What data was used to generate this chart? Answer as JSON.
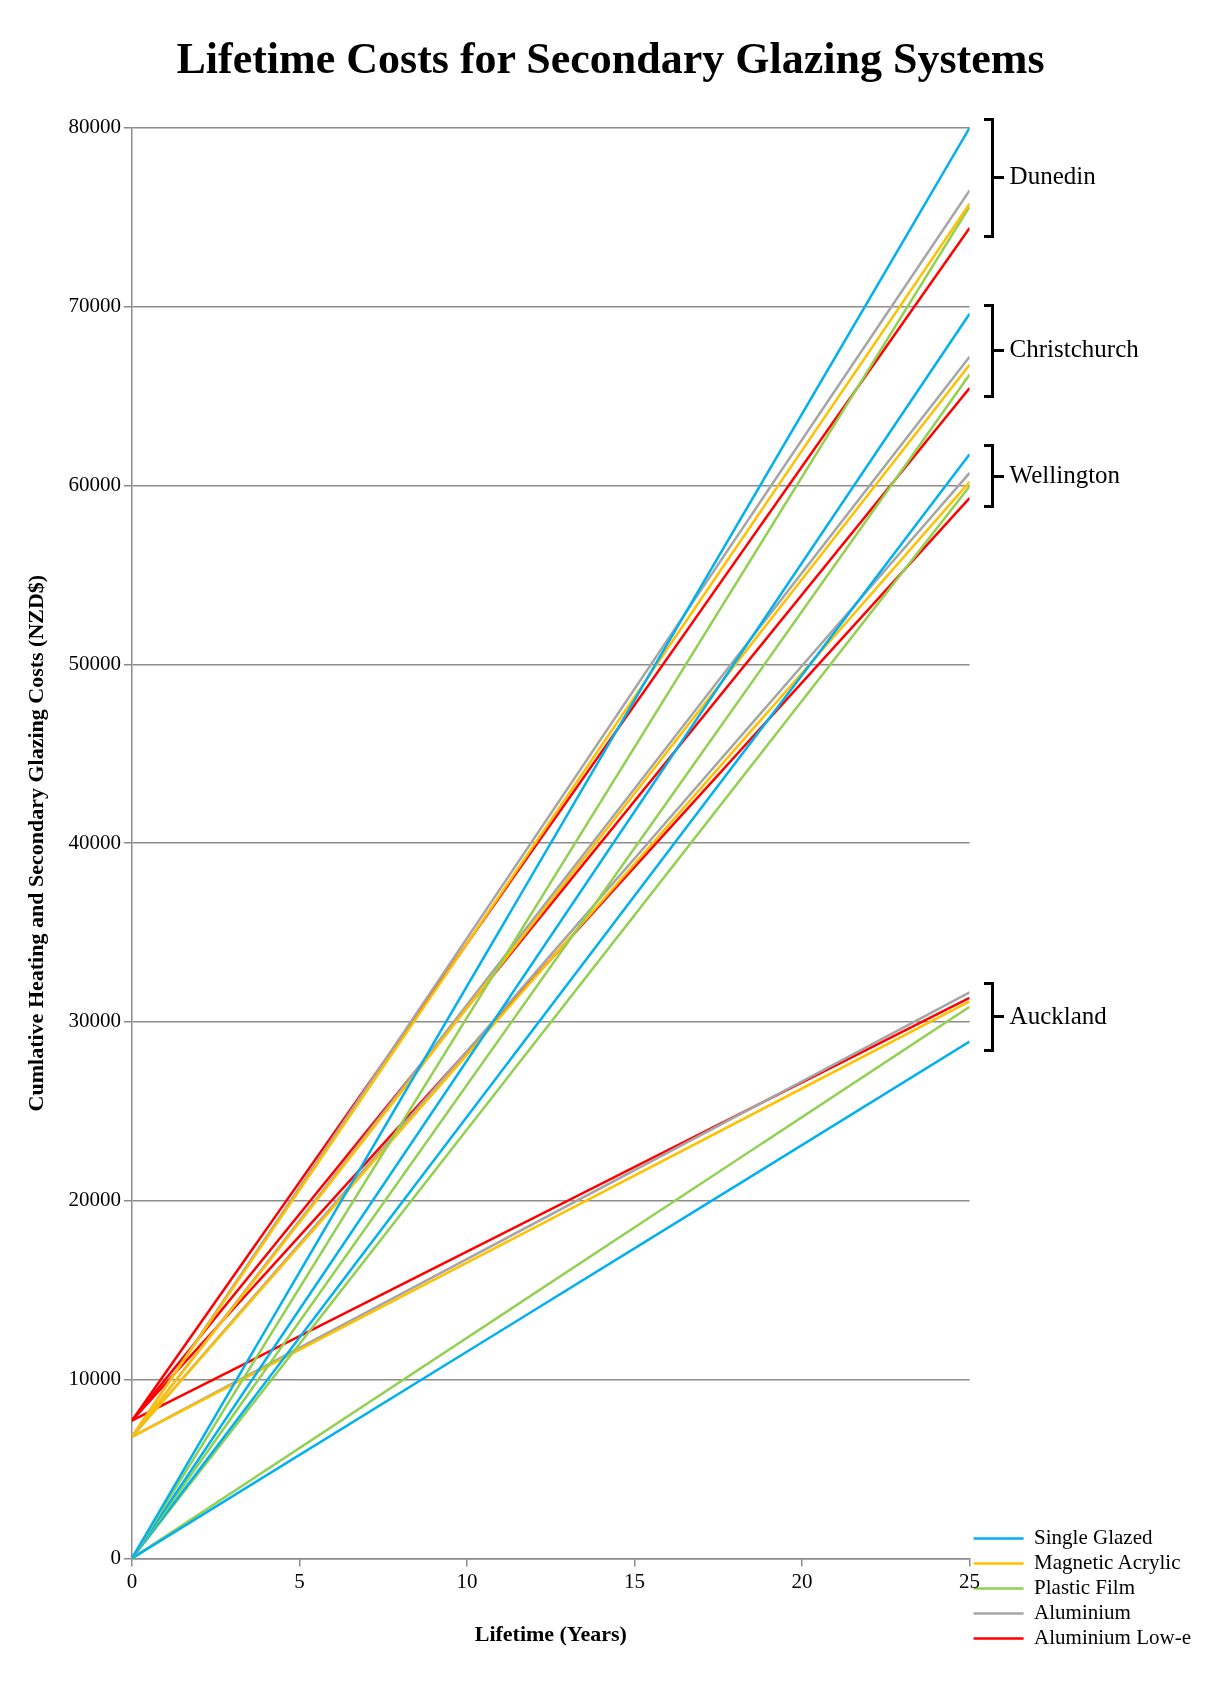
{
  "chart_data": {
    "type": "line",
    "title": "Lifetime Costs for Secondary Glazing Systems",
    "xlabel": "Lifetime (Years)",
    "ylabel": "Cumlative Heating and Secondary Glazing Costs (NZD$)",
    "x": [
      0,
      25
    ],
    "xlim": [
      0,
      25
    ],
    "xticks": [
      0,
      5,
      10,
      15,
      20,
      25
    ],
    "ylim": [
      0,
      80000
    ],
    "yticks": [
      0,
      10000,
      20000,
      30000,
      40000,
      50000,
      60000,
      70000,
      80000
    ],
    "grid": "y",
    "legend": "bottom right",
    "marker": "none",
    "line_style": "solid",
    "series": [
      {
        "name": "Single Glazed",
        "color": "#00b0f0",
        "values": [
          0,
          80000
        ]
      },
      {
        "name": "Magnetic Acrylic",
        "color": "#ffc000",
        "values": [
          6800,
          75750
        ]
      },
      {
        "name": "Plastic Film",
        "color": "#92d050",
        "values": [
          0,
          75600
        ]
      },
      {
        "name": "Aluminium",
        "color": "#a5a5a5",
        "values": [
          6800,
          76500
        ]
      },
      {
        "name": "Aluminium Low-e",
        "color": "#ff0000",
        "values": [
          7700,
          74400
        ]
      },
      {
        "color": "#00b0f0",
        "values": [
          0,
          69600
        ]
      },
      {
        "color": "#ffc000",
        "values": [
          6800,
          66750
        ]
      },
      {
        "color": "#92d050",
        "values": [
          0,
          66200
        ]
      },
      {
        "color": "#a5a5a5",
        "values": [
          6800,
          67200
        ]
      },
      {
        "color": "#ff0000",
        "values": [
          7700,
          65450
        ]
      },
      {
        "color": "#00b0f0",
        "values": [
          0,
          61750
        ]
      },
      {
        "color": "#ffc000",
        "values": [
          6800,
          60200
        ]
      },
      {
        "color": "#92d050",
        "values": [
          0,
          59950
        ]
      },
      {
        "color": "#a5a5a5",
        "values": [
          6800,
          60700
        ]
      },
      {
        "color": "#ff0000",
        "values": [
          7700,
          59300
        ]
      },
      {
        "color": "#00b0f0",
        "values": [
          0,
          28900
        ]
      },
      {
        "color": "#ffc000",
        "values": [
          6800,
          31150
        ]
      },
      {
        "color": "#92d050",
        "values": [
          0,
          30850
        ]
      },
      {
        "color": "#a5a5a5",
        "values": [
          6800,
          31650
        ]
      },
      {
        "color": "#ff0000",
        "values": [
          7700,
          31350
        ]
      }
    ],
    "annotations": [
      "Dunedin",
      "Christchurch",
      "Wellington",
      "Auckland"
    ]
  }
}
